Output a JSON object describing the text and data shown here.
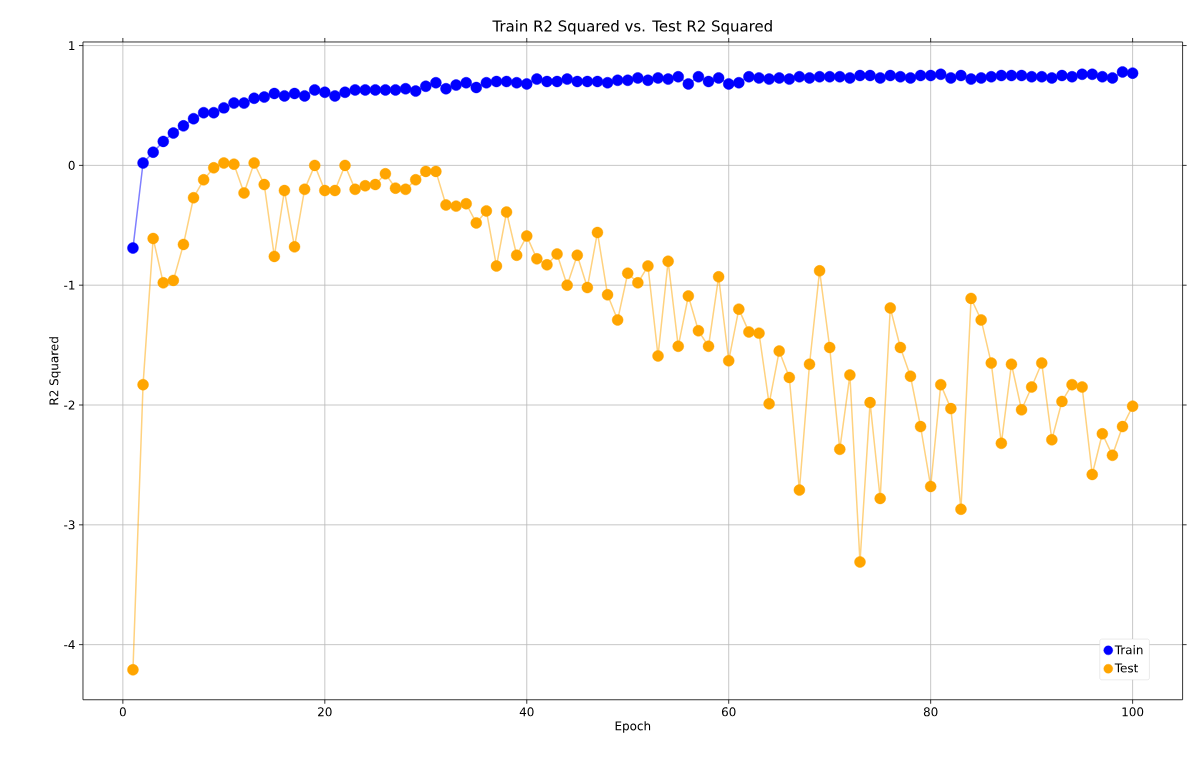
{
  "chart_data": {
    "type": "line",
    "title": "Train R2 Squared vs. Test R2 Squared",
    "xlabel": "Epoch",
    "ylabel": "R2 Squared",
    "x": [
      1,
      2,
      3,
      4,
      5,
      6,
      7,
      8,
      9,
      10,
      11,
      12,
      13,
      14,
      15,
      16,
      17,
      18,
      19,
      20,
      21,
      22,
      23,
      24,
      25,
      26,
      27,
      28,
      29,
      30,
      31,
      32,
      33,
      34,
      35,
      36,
      37,
      38,
      39,
      40,
      41,
      42,
      43,
      44,
      45,
      46,
      47,
      48,
      49,
      50,
      51,
      52,
      53,
      54,
      55,
      56,
      57,
      58,
      59,
      60,
      61,
      62,
      63,
      64,
      65,
      66,
      67,
      68,
      69,
      70,
      71,
      72,
      73,
      74,
      75,
      76,
      77,
      78,
      79,
      80,
      81,
      82,
      83,
      84,
      85,
      86,
      87,
      88,
      89,
      90,
      91,
      92,
      93,
      94,
      95,
      96,
      97,
      98,
      99,
      100
    ],
    "series": [
      {
        "name": "Train",
        "color": "#0000ff",
        "values": [
          -0.69,
          0.02,
          0.11,
          0.2,
          0.27,
          0.33,
          0.39,
          0.44,
          0.44,
          0.48,
          0.52,
          0.52,
          0.56,
          0.57,
          0.6,
          0.58,
          0.6,
          0.58,
          0.63,
          0.61,
          0.58,
          0.61,
          0.63,
          0.63,
          0.63,
          0.63,
          0.63,
          0.64,
          0.62,
          0.66,
          0.69,
          0.64,
          0.67,
          0.69,
          0.65,
          0.69,
          0.7,
          0.7,
          0.69,
          0.68,
          0.72,
          0.7,
          0.7,
          0.72,
          0.7,
          0.7,
          0.7,
          0.69,
          0.71,
          0.71,
          0.73,
          0.71,
          0.73,
          0.72,
          0.74,
          0.68,
          0.74,
          0.7,
          0.73,
          0.68,
          0.69,
          0.74,
          0.73,
          0.72,
          0.73,
          0.72,
          0.74,
          0.73,
          0.74,
          0.74,
          0.74,
          0.73,
          0.75,
          0.75,
          0.73,
          0.75,
          0.74,
          0.73,
          0.75,
          0.75,
          0.76,
          0.73,
          0.75,
          0.72,
          0.73,
          0.74,
          0.75,
          0.75,
          0.75,
          0.74,
          0.74,
          0.73,
          0.75,
          0.74,
          0.76,
          0.76,
          0.74,
          0.73,
          0.78,
          0.77
        ]
      },
      {
        "name": "Test",
        "color": "#ffa500",
        "values": [
          -4.21,
          -1.83,
          -0.61,
          -0.98,
          -0.96,
          -0.66,
          -0.27,
          -0.12,
          -0.02,
          0.02,
          0.01,
          -0.23,
          0.02,
          -0.16,
          -0.76,
          -0.21,
          -0.68,
          -0.2,
          0.0,
          -0.21,
          -0.21,
          0.0,
          -0.2,
          -0.17,
          -0.16,
          -0.07,
          -0.19,
          -0.2,
          -0.12,
          -0.05,
          -0.05,
          -0.33,
          -0.34,
          -0.32,
          -0.48,
          -0.38,
          -0.84,
          -0.39,
          -0.75,
          -0.59,
          -0.78,
          -0.83,
          -0.74,
          -1.0,
          -0.75,
          -1.02,
          -0.56,
          -1.08,
          -1.29,
          -0.9,
          -0.98,
          -0.84,
          -1.59,
          -0.8,
          -1.51,
          -1.09,
          -1.38,
          -1.51,
          -0.93,
          -1.63,
          -1.2,
          -1.39,
          -1.4,
          -1.99,
          -1.55,
          -1.77,
          -2.71,
          -1.66,
          -0.88,
          -1.52,
          -2.37,
          -1.75,
          -3.31,
          -1.98,
          -2.78,
          -1.19,
          -1.52,
          -1.76,
          -2.18,
          -2.68,
          -1.83,
          -2.03,
          -2.87,
          -1.11,
          -1.29,
          -1.65,
          -2.32,
          -1.66,
          -2.04,
          -1.85,
          -1.65,
          -2.29,
          -1.97,
          -1.83,
          -1.85,
          -2.58,
          -2.24,
          -2.42,
          -2.18,
          -2.01
        ]
      }
    ],
    "xlim": [
      -3.95,
      104.95
    ],
    "ylim": [
      -4.46,
      1.03
    ],
    "xticks": [
      0,
      20,
      40,
      60,
      80,
      100
    ],
    "yticks": [
      -4,
      -3,
      -2,
      -1,
      0,
      1
    ],
    "grid": true,
    "legend": "bottom right",
    "marker": "circle",
    "line_style": "solid"
  }
}
